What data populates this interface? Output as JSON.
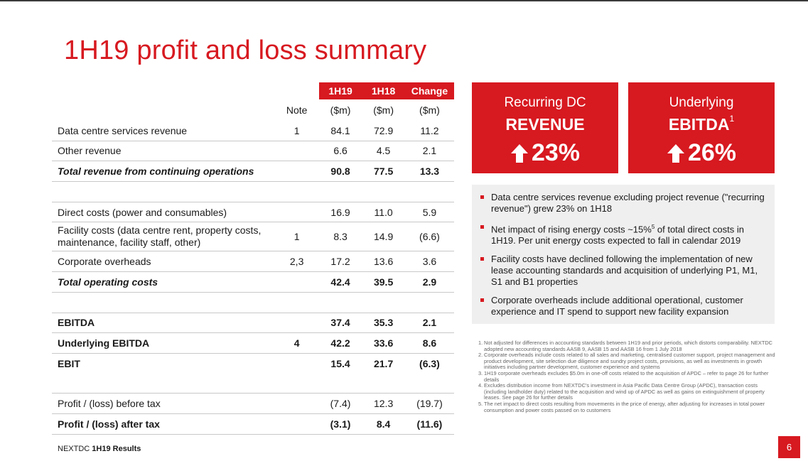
{
  "title": "1H19 profit and loss summary",
  "table": {
    "headers": {
      "h19": "1H19",
      "h18": "1H18",
      "change": "Change"
    },
    "units": {
      "note": "Note",
      "h19": "($m)",
      "h18": "($m)",
      "change": "($m)"
    },
    "rows": {
      "dc_revenue": {
        "label": "Data centre services revenue",
        "note": "1",
        "h19": "84.1",
        "h18": "72.9",
        "change": "11.2"
      },
      "other_revenue": {
        "label": "Other revenue",
        "note": "",
        "h19": "6.6",
        "h18": "4.5",
        "change": "2.1"
      },
      "total_revenue": {
        "label": "Total revenue from continuing operations",
        "note": "",
        "h19": "90.8",
        "h18": "77.5",
        "change": "13.3"
      },
      "direct_costs": {
        "label": "Direct costs (power and consumables)",
        "note": "",
        "h19": "16.9",
        "h18": "11.0",
        "change": "5.9"
      },
      "facility_costs": {
        "label": "Facility costs (data centre rent, property costs, maintenance, facility staff, other)",
        "note": "1",
        "h19": "8.3",
        "h18": "14.9",
        "change": "(6.6)"
      },
      "corporate_overheads": {
        "label": "Corporate overheads",
        "note": "2,3",
        "h19": "17.2",
        "h18": "13.6",
        "change": "3.6"
      },
      "total_operating_costs": {
        "label": "Total operating costs",
        "note": "",
        "h19": "42.4",
        "h18": "39.5",
        "change": "2.9"
      },
      "ebitda": {
        "label": "EBITDA",
        "note": "",
        "h19": "37.4",
        "h18": "35.3",
        "change": "2.1"
      },
      "underlying_ebitda": {
        "label": "Underlying EBITDA",
        "note": "4",
        "h19": "42.2",
        "h18": "33.6",
        "change": "8.6"
      },
      "ebit": {
        "label": "EBIT",
        "note": "",
        "h19": "15.4",
        "h18": "21.7",
        "change": "(6.3)"
      },
      "profit_before_tax": {
        "label": "Profit / (loss) before tax",
        "note": "",
        "h19": "(7.4)",
        "h18": "12.3",
        "change": "(19.7)"
      },
      "profit_after_tax": {
        "label": "Profit / (loss) after tax",
        "note": "",
        "h19": "(3.1)",
        "h18": "8.4",
        "change": "(11.6)"
      }
    }
  },
  "kpis": {
    "revenue": {
      "line1": "Recurring DC",
      "line2": "REVENUE",
      "value": "23%",
      "icon": "arrow-up-icon"
    },
    "ebitda": {
      "line1": "Underlying",
      "line2": "EBITDA",
      "sup": "1",
      "value": "26%",
      "icon": "arrow-up-icon"
    }
  },
  "bullets": [
    "Data centre services revenue excluding project revenue (\"recurring revenue\") grew 23% on 1H18",
    "Net impact of rising energy costs ~15%",
    "Facility costs have declined following the implementation of new lease accounting standards and acquisition of underlying P1, M1, S1 and B1 properties",
    "Corporate overheads include additional operational, customer experience and IT spend to support new facility expansion"
  ],
  "bullet2": {
    "before": "Net impact of rising energy costs ~15%",
    "sup": "5",
    "after": " of total direct costs in 1H19. Per unit energy costs expected to fall in calendar 2019"
  },
  "footnotes": [
    {
      "n": "1.",
      "text": "Not adjusted for differences in accounting standards between 1H19 and prior periods, which distorts comparability. NEXTDC adopted new accounting standards AASB 9, AASB 15 and AASB 16 from 1 July 2018"
    },
    {
      "n": "2.",
      "text": "Corporate overheads include costs related to all sales and marketing, centralised customer support, project management and product development, site selection due diligence and sundry project costs, provisions, as well as investments in growth initiatives including partner development, customer experience and systems"
    },
    {
      "n": "3.",
      "text": "1H19 corporate overheads excludes $5.0m in one-off costs related to the acquisition of APDC – refer to page 26 for further details"
    },
    {
      "n": "4.",
      "text": "Excludes distribution income from NEXTDC's investment in Asia Pacific Data Centre Group (APDC), transaction costs (including landholder duty) related to the acquisition and wind up of APDC as well as gains on extinguishment of property leases. See page 26 for further details"
    },
    {
      "n": "5.",
      "text": "The net impact to direct costs resulting from movements in the price of energy, after adjusting for increases in total power consumption and power costs passed on to customers"
    }
  ],
  "footer": {
    "company": "NEXTDC",
    "report": "1H19 Results"
  },
  "page_number": "6",
  "colors": {
    "brand_red": "#d71920",
    "panel_grey": "#efefef"
  }
}
